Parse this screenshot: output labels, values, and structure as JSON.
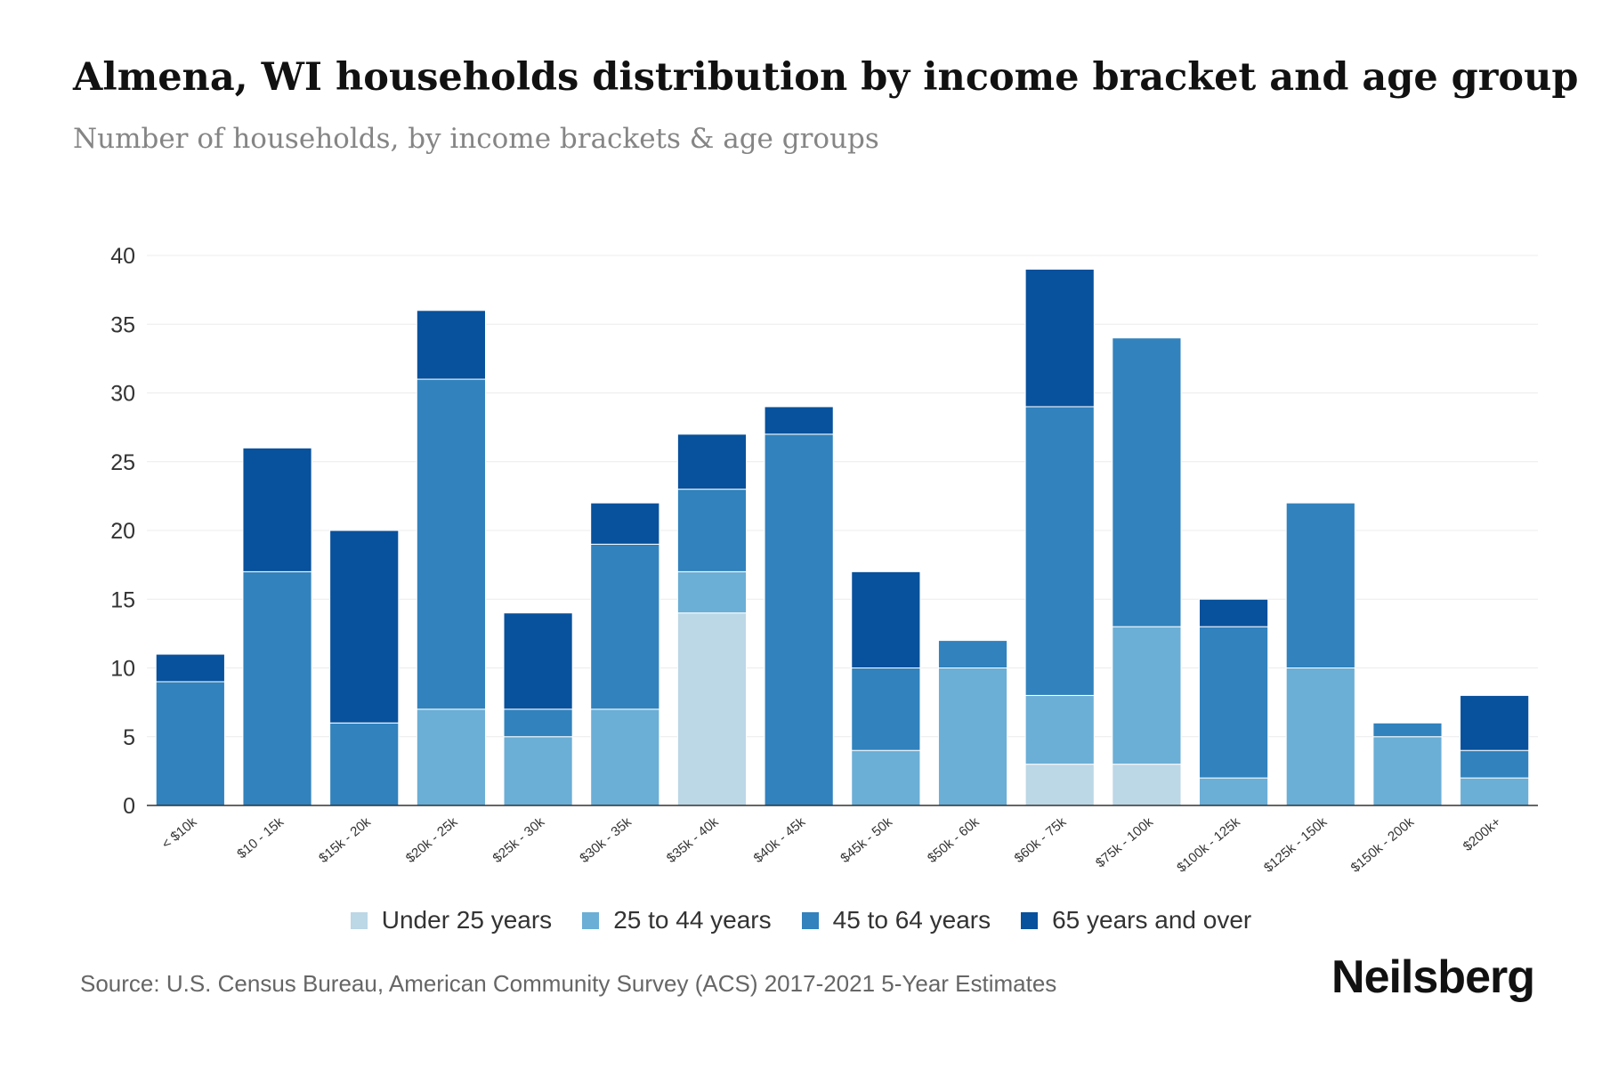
{
  "title": "Almena, WI households distribution by income bracket and age group",
  "subtitle": "Number of households, by income brackets & age groups",
  "source": "Source: U.S. Census Bureau, American Community Survey (ACS) 2017-2021 5-Year Estimates",
  "brand": "Neilsberg",
  "colors": {
    "under_25": "#bcd7e6",
    "age_25_44": "#6baed6",
    "age_45_64": "#3182bd",
    "age_65_over": "#08519c",
    "grid": "#ececec",
    "axis": "#333333"
  },
  "chart_data": {
    "type": "bar",
    "stacked": true,
    "title": "Almena, WI households distribution by income bracket and age group",
    "xlabel": "",
    "ylabel": "",
    "ylim": [
      0,
      40
    ],
    "yticks": [
      0,
      5,
      10,
      15,
      20,
      25,
      30,
      35,
      40
    ],
    "grid": true,
    "legend_position": "bottom-center",
    "categories": [
      "< $10k",
      "$10 - 15k",
      "$15k - 20k",
      "$20k - 25k",
      "$25k - 30k",
      "$30k - 35k",
      "$35k - 40k",
      "$40k - 45k",
      "$45k - 50k",
      "$50k - 60k",
      "$60k - 75k",
      "$75k - 100k",
      "$100k - 125k",
      "$125k - 150k",
      "$150k - 200k",
      "$200k+"
    ],
    "series": [
      {
        "name": "Under 25 years",
        "color_key": "under_25",
        "values": [
          0,
          0,
          0,
          0,
          0,
          0,
          14,
          0,
          0,
          0,
          3,
          3,
          0,
          0,
          0,
          0
        ]
      },
      {
        "name": "25 to 44 years",
        "color_key": "age_25_44",
        "values": [
          0,
          0,
          0,
          7,
          5,
          7,
          3,
          0,
          4,
          10,
          5,
          10,
          2,
          10,
          5,
          2
        ]
      },
      {
        "name": "45 to 64 years",
        "color_key": "age_45_64",
        "values": [
          9,
          17,
          6,
          24,
          2,
          12,
          6,
          27,
          6,
          2,
          21,
          21,
          11,
          12,
          1,
          2
        ]
      },
      {
        "name": "65 years and over",
        "color_key": "age_65_over",
        "values": [
          2,
          9,
          14,
          5,
          7,
          3,
          4,
          2,
          7,
          0,
          10,
          0,
          2,
          0,
          0,
          4
        ]
      }
    ]
  }
}
